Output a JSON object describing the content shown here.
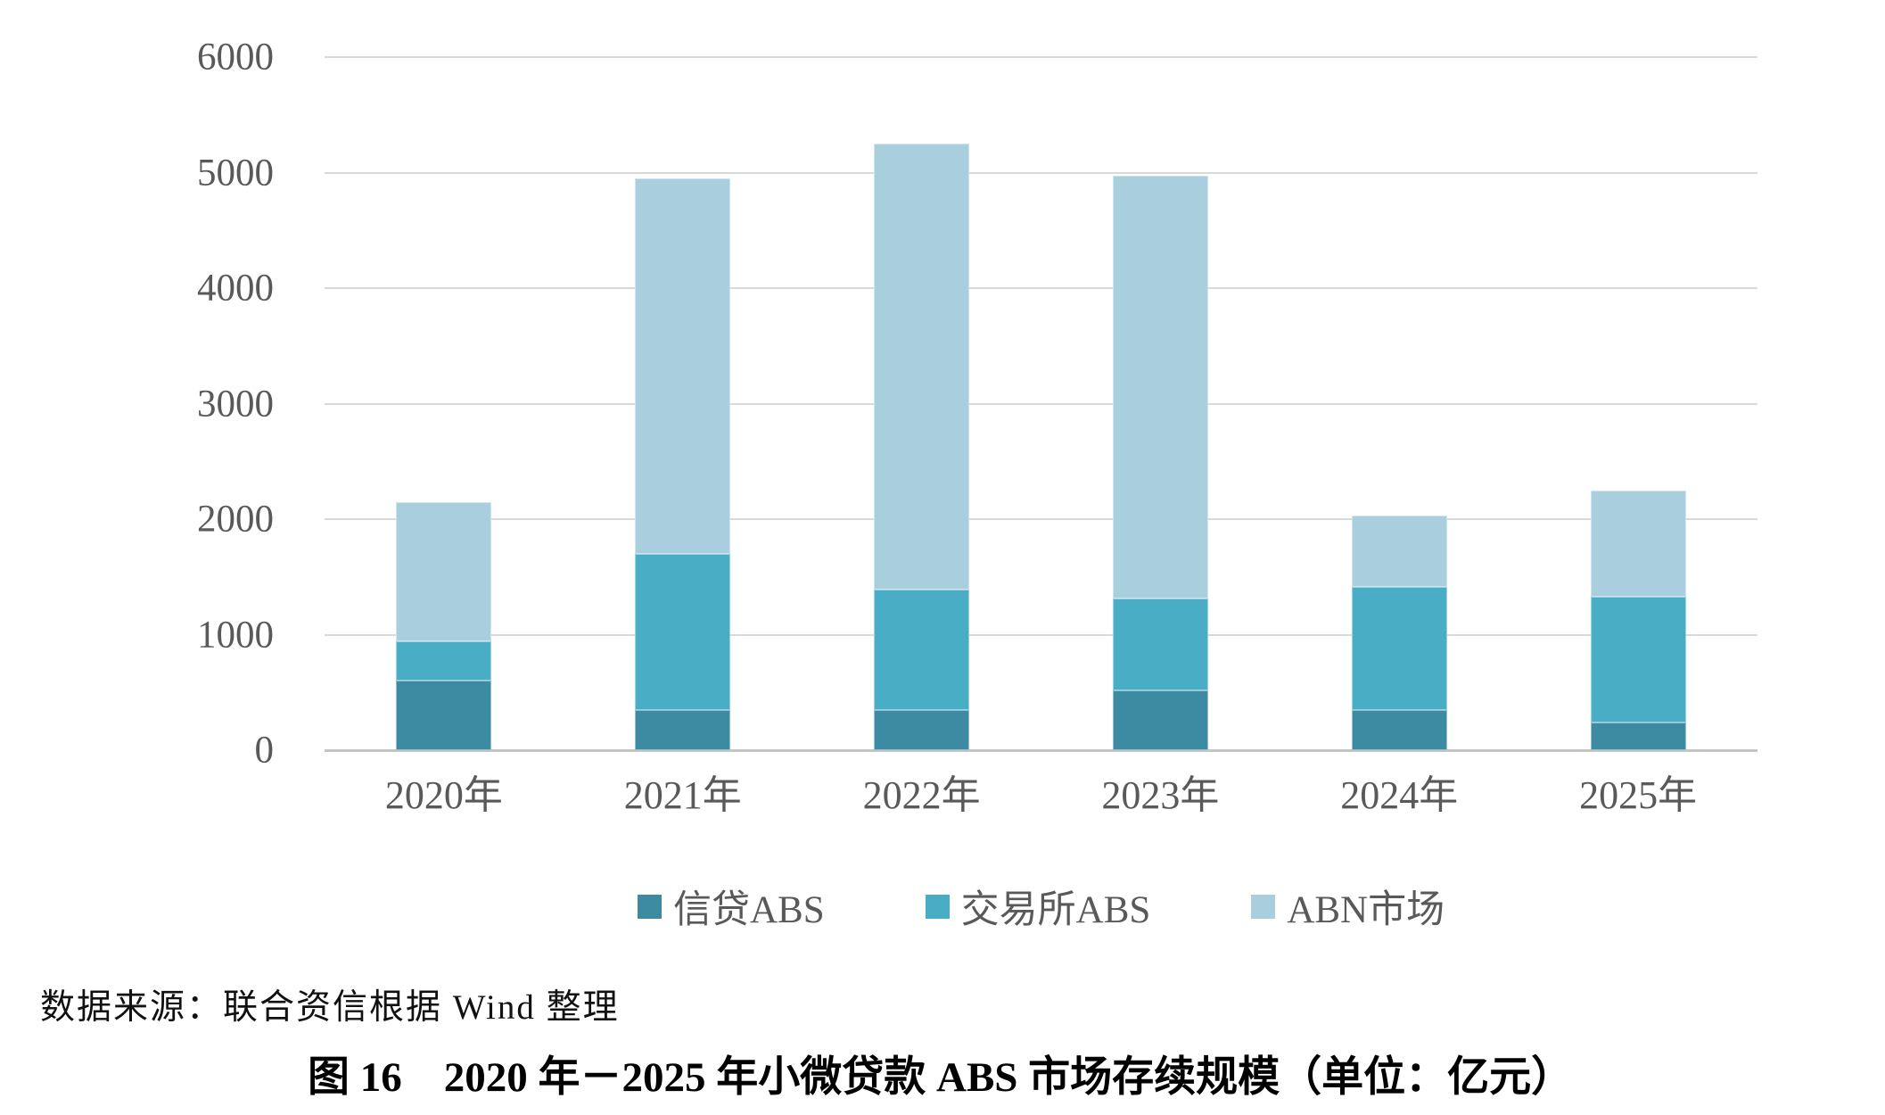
{
  "page": {
    "background": "#ffffff"
  },
  "chart_data": {
    "type": "bar",
    "stacked": true,
    "title": "",
    "xlabel": "",
    "ylabel": "",
    "unit": "亿元",
    "categories": [
      "2020年",
      "2021年",
      "2022年",
      "2023年",
      "2024年",
      "2025年"
    ],
    "series": [
      {
        "name": "信贷ABS",
        "color": "#3d8ba2",
        "values": [
          600,
          350,
          350,
          520,
          350,
          240
        ]
      },
      {
        "name": "交易所ABS",
        "color": "#4aadc6",
        "values": [
          345,
          1350,
          1040,
          790,
          1060,
          1090
        ]
      },
      {
        "name": "ABN市场",
        "color": "#a9cedd",
        "values": [
          1205,
          3250,
          3860,
          3660,
          620,
          920
        ]
      }
    ],
    "totals": [
      2150,
      4950,
      5250,
      4970,
      2030,
      2250
    ],
    "ylim": [
      0,
      6000
    ],
    "ytick_interval": 1000,
    "ytick_labels": [
      "0",
      "1000",
      "2000",
      "3000",
      "4000",
      "5000",
      "6000"
    ],
    "grid": true,
    "gridline_color": "#d9d9d9",
    "axis_line_color": "#c4c4c4",
    "tick_label_color": "#595959",
    "legend_position": "bottom"
  },
  "source_note": "数据来源：联合资信根据 Wind 整理",
  "caption": "图 16　2020 年－2025 年小微贷款 ABS 市场存续规模（单位：亿元）"
}
